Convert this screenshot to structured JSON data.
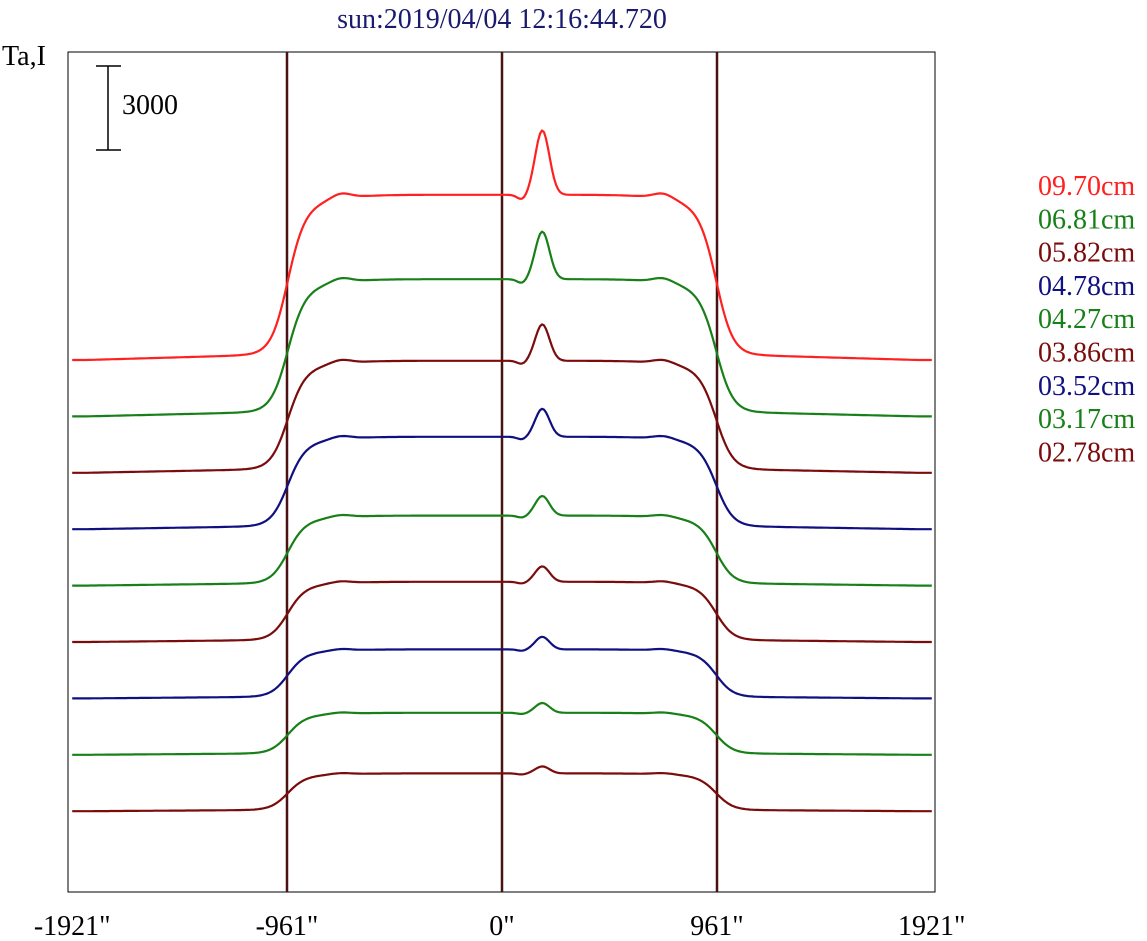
{
  "chart_data": {
    "type": "line",
    "title": "sun:2019/04/04 12:16:44.720",
    "ylabel": "Ta,I",
    "scale_bar_label": "3000",
    "scale_bar_value": 3000,
    "x_ticks": [
      "-1921\"",
      "-961\"",
      "0\"",
      "961\"",
      "1921\""
    ],
    "x_tick_values": [
      -1921,
      -961,
      0,
      961,
      1921
    ],
    "xlim": [
      -1921,
      1921
    ],
    "vertical_lines": [
      -961,
      0,
      961
    ],
    "series": [
      {
        "name": "09.70cm",
        "color": "#ff2020",
        "peak": 8200,
        "plateau": 5900,
        "base": 360
      },
      {
        "name": "06.81cm",
        "color": "#188018",
        "peak": 6600,
        "plateau": 4900,
        "base": 0
      },
      {
        "name": "05.82cm",
        "color": "#7a0c0c",
        "peak": 5300,
        "plateau": 4000,
        "base": 0
      },
      {
        "name": "04.78cm",
        "color": "#101080",
        "peak": 4300,
        "plateau": 3300,
        "base": 0
      },
      {
        "name": "04.27cm",
        "color": "#188018",
        "peak": 3200,
        "plateau": 2500,
        "base": 0
      },
      {
        "name": "03.86cm",
        "color": "#7a0c0c",
        "peak": 2700,
        "plateau": 2150,
        "base": 0
      },
      {
        "name": "03.52cm",
        "color": "#101080",
        "peak": 2200,
        "plateau": 1750,
        "base": 0
      },
      {
        "name": "03.17cm",
        "color": "#188018",
        "peak": 1850,
        "plateau": 1500,
        "base": 0
      },
      {
        "name": "02.78cm",
        "color": "#7a0c0c",
        "peak": 1600,
        "plateau": 1350,
        "base": 0
      }
    ]
  }
}
